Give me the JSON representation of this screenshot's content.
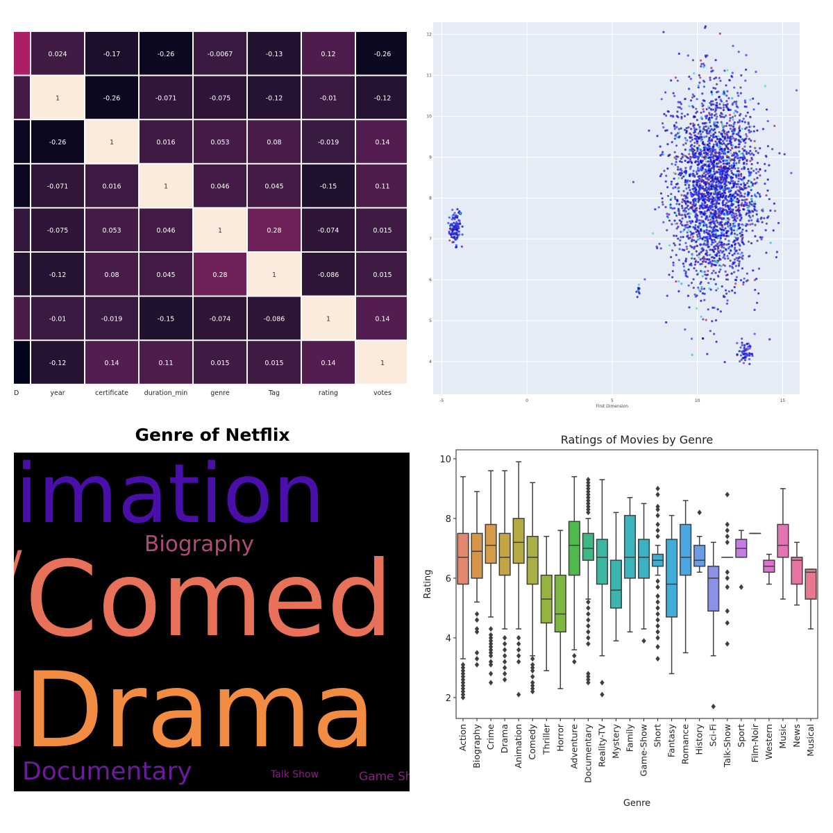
{
  "heatmap": {
    "chart_data": {
      "type": "heatmap",
      "partial_left_label": "D",
      "columns": [
        "year",
        "certificate",
        "duration_min",
        "genre",
        "Tag",
        "rating",
        "votes"
      ],
      "values": [
        [
          0.024,
          -0.17,
          -0.26,
          -0.0067,
          -0.13,
          0.12,
          -0.26
        ],
        [
          1,
          -0.26,
          -0.071,
          -0.075,
          -0.12,
          -0.01,
          -0.12
        ],
        [
          -0.26,
          1,
          0.016,
          0.053,
          0.08,
          -0.019,
          0.14
        ],
        [
          -0.071,
          0.016,
          1,
          0.046,
          0.045,
          -0.15,
          0.11
        ],
        [
          -0.075,
          0.053,
          0.046,
          1,
          0.28,
          -0.074,
          0.015
        ],
        [
          -0.12,
          0.08,
          0.045,
          0.28,
          1,
          -0.086,
          0.015
        ],
        [
          -0.01,
          -0.019,
          -0.15,
          -0.074,
          -0.086,
          1,
          0.14
        ],
        [
          -0.12,
          0.14,
          0.11,
          0.015,
          0.015,
          0.14,
          1
        ]
      ],
      "labels_text": [
        [
          "0.024",
          "-0.17",
          "-0.26",
          "-0.0067",
          "-0.13",
          "0.12",
          "-0.26"
        ],
        [
          "1",
          "-0.26",
          "-0.071",
          "-0.075",
          "-0.12",
          "-0.01",
          "-0.12"
        ],
        [
          "-0.26",
          "1",
          "0.016",
          "0.053",
          "0.08",
          "-0.019",
          "0.14"
        ],
        [
          "-0.071",
          "0.016",
          "1",
          "0.046",
          "0.045",
          "-0.15",
          "0.11"
        ],
        [
          "-0.075",
          "0.053",
          "0.046",
          "1",
          "0.28",
          "-0.074",
          "0.015"
        ],
        [
          "-0.12",
          "0.08",
          "0.045",
          "0.28",
          "1",
          "-0.086",
          "0.015"
        ],
        [
          "-0.01",
          "-0.019",
          "-0.15",
          "-0.074",
          "-0.086",
          "1",
          "0.14"
        ],
        [
          "-0.12",
          "0.14",
          "0.11",
          "0.015",
          "0.015",
          "0.14",
          "1"
        ]
      ],
      "partial_column_values": [
        0.5,
        0.05,
        -0.26,
        -0.26,
        -0.05,
        -0.12,
        0.08,
        -0.3
      ],
      "colormap": "rocket",
      "vmin": -0.3,
      "vmax": 1
    }
  },
  "scatter": {
    "chart_data": {
      "type": "scatter",
      "xlabel": "First Dimension",
      "ylabel": "",
      "xlim": [
        -5.5,
        16
      ],
      "ylim": [
        3.2,
        12.3
      ],
      "xticks": [
        -5,
        0,
        5,
        10,
        15
      ],
      "yticks": [
        4,
        5,
        6,
        7,
        8,
        9,
        10,
        11,
        12
      ],
      "clusters": [
        {
          "shape": "ellipse",
          "center": [
            -4.2,
            7.3
          ],
          "spread": [
            0.35,
            0.4
          ],
          "n": 110
        },
        {
          "shape": "ellipse",
          "center": [
            11,
            8.2
          ],
          "spread": [
            2.3,
            2.2
          ],
          "n": 2600
        },
        {
          "shape": "ellipse",
          "center": [
            12.8,
            4.2
          ],
          "spread": [
            0.35,
            0.25
          ],
          "n": 60
        },
        {
          "shape": "ellipse",
          "center": [
            6.5,
            5.8
          ],
          "spread": [
            0.1,
            0.12
          ],
          "n": 10
        }
      ],
      "colors": [
        "#1414d2",
        "#0a0ac8",
        "#2b3cff",
        "#3c28b4",
        "#8c2a6e",
        "#b4325a",
        "#28b4e6",
        "#3cc8f0",
        "#46e6a0"
      ],
      "background": "#e5ecf6"
    }
  },
  "wordcloud": {
    "title": "Genre of Netflix",
    "words": [
      {
        "text": "imation",
        "size": 118,
        "color": "#4a0fa8"
      },
      {
        "text": "Biography",
        "size": 31,
        "color": "#b04a79"
      },
      {
        "text": "/",
        "size": 70,
        "color": "#e8715a"
      },
      {
        "text": "Comed",
        "size": 150,
        "color": "#e8715a"
      },
      {
        "text": "Drama",
        "size": 150,
        "color": "#f28c43"
      },
      {
        "text": "Documentary",
        "size": 36,
        "color": "#6a1c9a"
      },
      {
        "text": "Talk Show",
        "size": 14,
        "color": "#8b1e86"
      },
      {
        "text": "Game Sh",
        "size": 17,
        "color": "#8b1e86"
      }
    ],
    "colormap": "plasma"
  },
  "boxplot": {
    "chart_data": {
      "type": "box",
      "title": "Ratings of Movies by Genre",
      "xlabel": "Genre",
      "ylabel": "Rating",
      "ylim": [
        1.3,
        10.3
      ],
      "yticks": [
        2,
        4,
        6,
        8,
        10
      ],
      "categories": [
        "Action",
        "Biography",
        "Crime",
        "Drama",
        "Animation",
        "Comedy",
        "Thriller",
        "Horror",
        "Adventure",
        "Documentary",
        "Reality-TV",
        "Mystery",
        "Family",
        "Game-Show",
        "Short",
        "Fantasy",
        "Romance",
        "History",
        "Sci-Fi",
        "Talk-Show",
        "Sport",
        "Film-Noir",
        "Western",
        "Music",
        "News",
        "Musical"
      ],
      "boxes": [
        {
          "whislo": 3.3,
          "q1": 5.8,
          "med": 6.7,
          "q3": 7.5,
          "whishi": 9.4,
          "fliers": [
            3.1,
            3.0,
            2.9,
            2.8,
            2.7,
            2.6,
            2.5,
            2.4,
            2.3,
            2.2,
            2.1,
            2.0
          ]
        },
        {
          "whislo": 5.2,
          "q1": 6.0,
          "med": 6.9,
          "q3": 7.5,
          "whishi": 8.9,
          "fliers": [
            4.8,
            4.6,
            4.3,
            4.2,
            3.5,
            3.3,
            3.1
          ]
        },
        {
          "whislo": 4.7,
          "q1": 6.5,
          "med": 7.1,
          "q3": 7.8,
          "whishi": 9.6,
          "fliers": [
            4.3,
            4.1,
            4.0,
            3.9,
            3.8,
            3.7,
            3.6,
            3.5,
            3.4,
            3.2,
            3.1,
            2.8,
            2.5
          ]
        },
        {
          "whislo": 4.3,
          "q1": 6.1,
          "med": 6.7,
          "q3": 7.5,
          "whishi": 9.6,
          "fliers": [
            4.0,
            3.8,
            3.6,
            3.4,
            3.2,
            3.0,
            2.8,
            2.6
          ]
        },
        {
          "whislo": 4.3,
          "q1": 6.5,
          "med": 7.2,
          "q3": 8.0,
          "whishi": 9.9,
          "fliers": [
            4.0,
            3.8,
            3.6,
            3.4,
            3.2,
            2.1
          ]
        },
        {
          "whislo": 3.4,
          "q1": 5.8,
          "med": 6.7,
          "q3": 7.4,
          "whishi": 9.2,
          "fliers": [
            3.3,
            3.1,
            3.0,
            2.9,
            2.7,
            2.5,
            2.4,
            2.3,
            2.2
          ]
        },
        {
          "whislo": 2.9,
          "q1": 4.5,
          "med": 5.3,
          "q3": 6.1,
          "whishi": 7.4,
          "fliers": []
        },
        {
          "whislo": 2.3,
          "q1": 4.2,
          "med": 4.8,
          "q3": 6.1,
          "whishi": 7.6,
          "fliers": []
        },
        {
          "whislo": 3.6,
          "q1": 6.1,
          "med": 7.1,
          "q3": 7.9,
          "whishi": 9.4,
          "fliers": [
            3.4,
            3.2
          ]
        },
        {
          "whislo": 5.3,
          "q1": 6.6,
          "med": 7.0,
          "q3": 7.5,
          "whishi": 8.0,
          "fliers": [
            9.3,
            9.2,
            9.1,
            9.0,
            8.9,
            8.8,
            8.7,
            8.6,
            8.5,
            8.4,
            8.3,
            8.2,
            5.2,
            5.0,
            4.8,
            4.6,
            4.4,
            4.2,
            4.0,
            3.8,
            2.8,
            2.7,
            2.6,
            2.5
          ]
        },
        {
          "whislo": 3.4,
          "q1": 5.8,
          "med": 6.7,
          "q3": 7.3,
          "whishi": 9.3,
          "fliers": [
            2.5,
            2.1
          ]
        },
        {
          "whislo": 3.9,
          "q1": 5.0,
          "med": 5.6,
          "q3": 6.6,
          "whishi": 8.2,
          "fliers": []
        },
        {
          "whislo": 4.2,
          "q1": 6.0,
          "med": 6.7,
          "q3": 8.1,
          "whishi": 8.7,
          "fliers": []
        },
        {
          "whislo": 4.3,
          "q1": 6.0,
          "med": 6.7,
          "q3": 7.3,
          "whishi": 8.5,
          "fliers": [
            3.9
          ]
        },
        {
          "whislo": 6.1,
          "q1": 6.4,
          "med": 6.6,
          "q3": 6.8,
          "whishi": 7.1,
          "fliers": [
            9.0,
            8.8,
            8.4,
            8.3,
            8.1,
            7.8,
            7.6,
            7.4,
            5.9,
            5.7,
            5.4,
            5.2,
            5.0,
            4.8,
            4.6,
            4.4,
            4.2,
            4.0,
            3.7,
            3.3
          ]
        },
        {
          "whislo": 2.8,
          "q1": 4.7,
          "med": 5.8,
          "q3": 7.3,
          "whishi": 8.1,
          "fliers": []
        },
        {
          "whislo": 3.5,
          "q1": 6.1,
          "med": 6.7,
          "q3": 7.8,
          "whishi": 8.6,
          "fliers": []
        },
        {
          "whislo": 6.2,
          "q1": 6.4,
          "med": 6.6,
          "q3": 7.1,
          "whishi": 7.4,
          "fliers": [
            8.2
          ]
        },
        {
          "whislo": 3.4,
          "q1": 4.9,
          "med": 6.0,
          "q3": 6.4,
          "whishi": 7.2,
          "fliers": [
            1.7
          ]
        },
        {
          "whislo": 6.7,
          "q1": 6.7,
          "med": 6.7,
          "q3": 6.7,
          "whishi": 6.7,
          "fliers": [
            8.8,
            7.8,
            7.6,
            7.4,
            7.2,
            6.2,
            6.0,
            5.7,
            4.9,
            4.5,
            3.8
          ]
        },
        {
          "whislo": 6.7,
          "q1": 6.7,
          "med": 7.0,
          "q3": 7.3,
          "whishi": 7.6,
          "fliers": [
            5.7
          ]
        },
        {
          "whislo": 7.5,
          "q1": 7.5,
          "med": 7.5,
          "q3": 7.5,
          "whishi": 7.5,
          "fliers": []
        },
        {
          "whislo": 5.8,
          "q1": 6.2,
          "med": 6.4,
          "q3": 6.6,
          "whishi": 6.8,
          "fliers": []
        },
        {
          "whislo": 5.3,
          "q1": 6.7,
          "med": 7.1,
          "q3": 7.8,
          "whishi": 9.0,
          "fliers": []
        },
        {
          "whislo": 5.1,
          "q1": 5.8,
          "med": 6.6,
          "q3": 6.7,
          "whishi": 7.2,
          "fliers": []
        },
        {
          "whislo": 4.3,
          "q1": 5.3,
          "med": 6.2,
          "q3": 6.3,
          "whishi": 6.3,
          "fliers": []
        }
      ],
      "colors": [
        "#e3886f",
        "#d59548",
        "#d49c48",
        "#c5a442",
        "#b8aa42",
        "#a9ae46",
        "#96b340",
        "#7eb83e",
        "#4fba4d",
        "#3fb785",
        "#3db79f",
        "#3bb5ad",
        "#3cb4b9",
        "#3bb1c3",
        "#3db0d0",
        "#41acd8",
        "#4aa7e1",
        "#6b9de5",
        "#8a91e7",
        "#a884e4",
        "#c47ce2",
        "#d276db",
        "#d974c8",
        "#e474b4",
        "#e675a2",
        "#e7788f"
      ]
    }
  }
}
